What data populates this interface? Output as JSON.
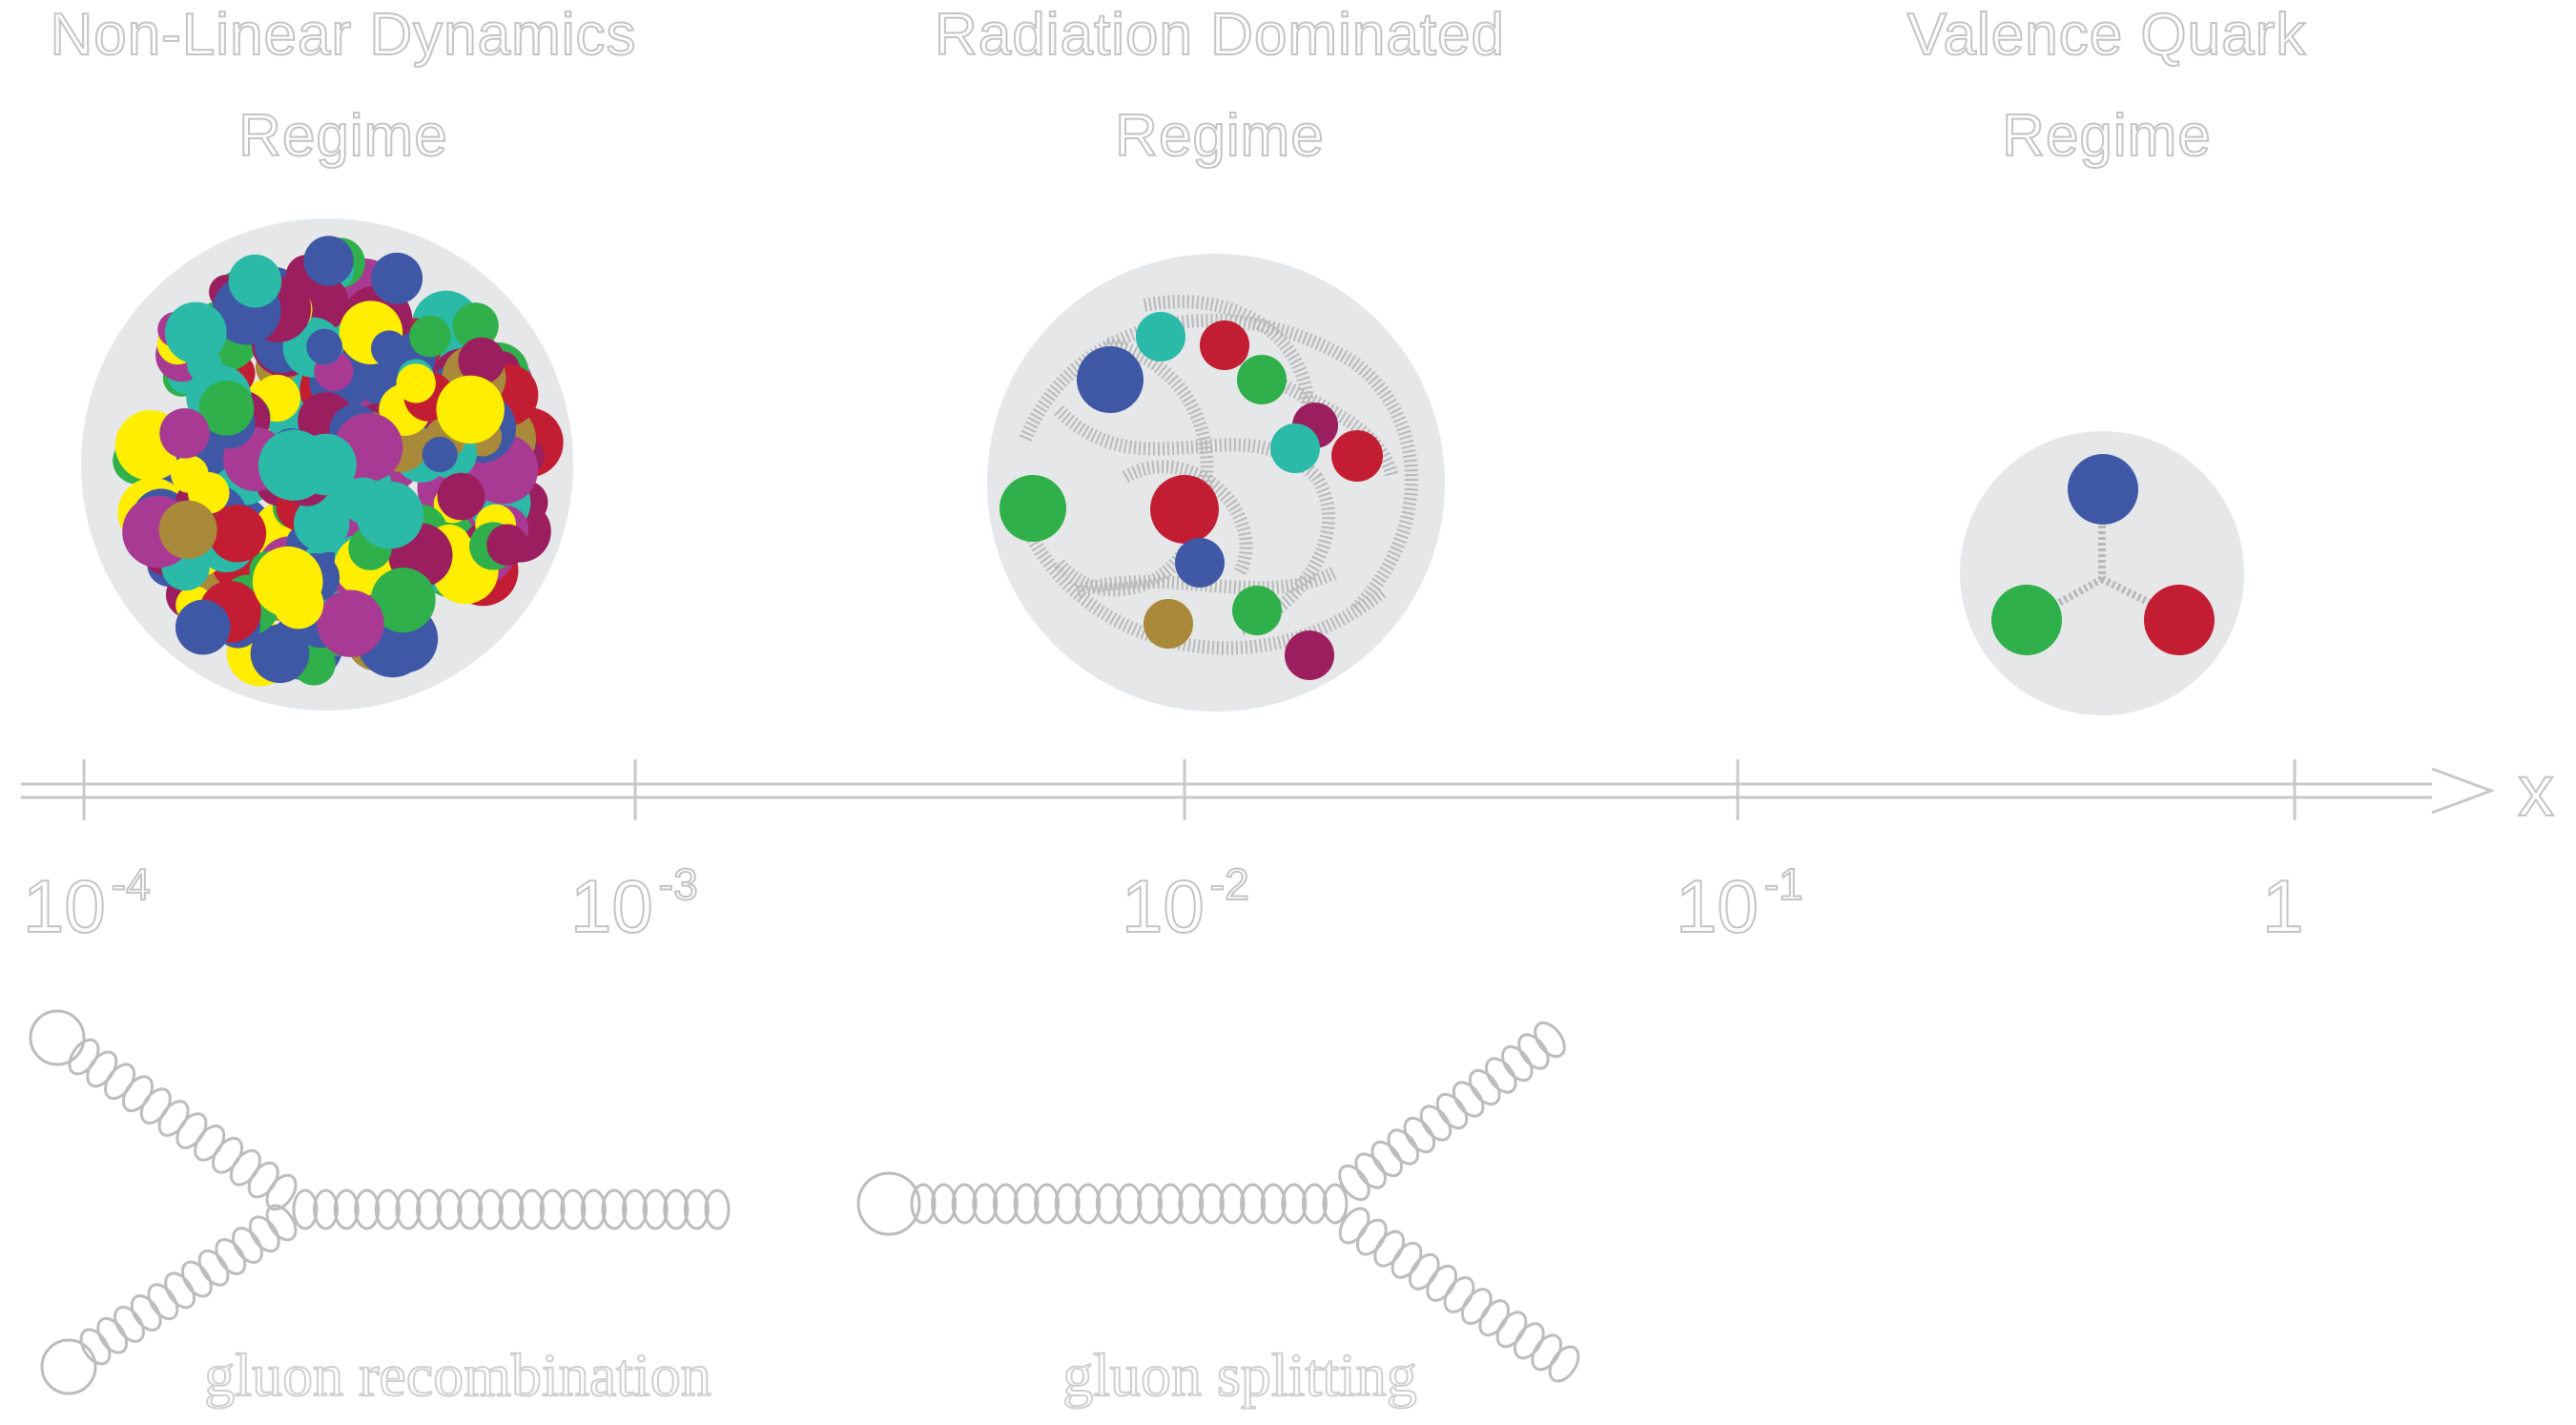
{
  "regimes": [
    {
      "title_line1": "Non-Linear Dynamics",
      "title_line2": "Regime",
      "color_mode": "dense"
    },
    {
      "title_line1": "Radiation Dominated",
      "title_line2": "Regime",
      "color_mode": "sparse"
    },
    {
      "title_line1": "Valence Quark",
      "title_line2": "Regime",
      "color_mode": "valence"
    }
  ],
  "axis": {
    "variable": "x",
    "ticks": [
      {
        "base": "10",
        "exp": "-4"
      },
      {
        "base": "10",
        "exp": "-3"
      },
      {
        "base": "10",
        "exp": "-2"
      },
      {
        "base": "10",
        "exp": "-1"
      },
      {
        "base": "1",
        "exp": ""
      }
    ]
  },
  "processes": {
    "left_label": "gluon recombination",
    "right_label": "gluon splitting"
  },
  "colors": {
    "red": "#c21d33",
    "blue": "#3f58a6",
    "green": "#2fb04a",
    "teal": "#2bbaa8",
    "tan": "#a88a3a",
    "magenta": "#a83a94",
    "crimson": "#9b1f5e",
    "yellow": "#ffee00",
    "disk": "#e6e7e8",
    "outline": "#c8c8c8"
  }
}
